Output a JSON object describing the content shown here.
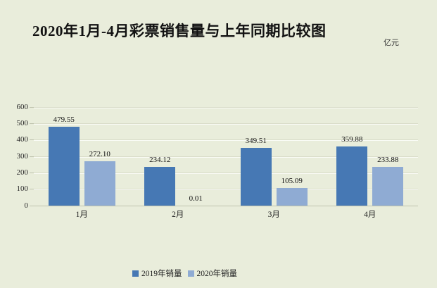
{
  "page": {
    "title": "2020年1月-4月彩票销售量与上年同期比较图",
    "unit_label": "亿元"
  },
  "chart_data": {
    "type": "bar",
    "title": "2020年1月-4月彩票销售量与上年同期比较图",
    "unit": "亿元",
    "categories": [
      "1月",
      "2月",
      "3月",
      "4月"
    ],
    "series": [
      {
        "name": "2019年销量",
        "color": "#4678b4",
        "values": [
          479.55,
          234.12,
          349.51,
          359.88
        ],
        "labels": [
          "479.55",
          "234.12",
          "349.51",
          "359.88"
        ]
      },
      {
        "name": "2020年销量",
        "color": "#8fabd3",
        "values": [
          272.1,
          0.01,
          105.09,
          233.88
        ],
        "labels": [
          "272.10",
          "0.01",
          "105.09",
          "233.88"
        ]
      }
    ],
    "ylim": [
      0,
      600
    ],
    "yticks": [
      0,
      100,
      200,
      300,
      400,
      500,
      600
    ],
    "grid": true,
    "legend_position": "bottom"
  },
  "colors": {
    "background": "#e9eddb",
    "bar_2019": "#4678b4",
    "bar_2020": "#8fabd3",
    "gridline": "#d9dcc9",
    "axis": "#bfc3ae",
    "text": "#1c1c1c"
  }
}
